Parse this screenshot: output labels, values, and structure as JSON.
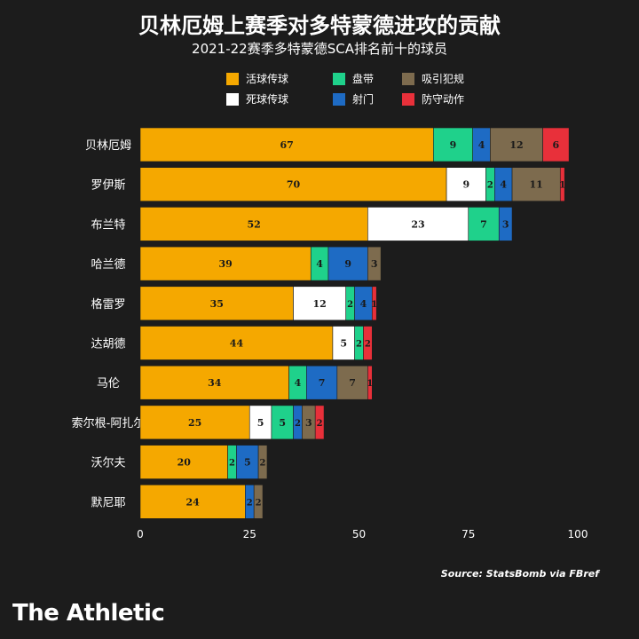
{
  "title": "贝林厄姆上赛季对多特蒙德进攻的贡献",
  "subtitle": "2021-22赛季多特蒙德SCA排名前十的球员",
  "source": "Source: StatsBomb via FBref",
  "brand": "The Athletic",
  "legend": [
    {
      "label": "活球传球",
      "color": "#f5a800"
    },
    {
      "label": "盘带",
      "color": "#1fd18b"
    },
    {
      "label": "吸引犯规",
      "color": "#7d6b4e"
    },
    {
      "label": "死球传球",
      "color": "#ffffff"
    },
    {
      "label": "射门",
      "color": "#1e6bc4"
    },
    {
      "label": "防守动作",
      "color": "#e8303a"
    }
  ],
  "chart_data": {
    "type": "bar",
    "orientation": "horizontal",
    "stacked": true,
    "categories": [
      "贝林厄姆",
      "罗伊斯",
      "布兰特",
      "哈兰德",
      "格雷罗",
      "达胡德",
      "马伦",
      "索尔根-阿扎尔",
      "沃尔夫",
      "默尼耶"
    ],
    "series": [
      {
        "name": "活球传球",
        "color": "#f5a800",
        "values": [
          67,
          70,
          52,
          39,
          35,
          44,
          34,
          25,
          20,
          24
        ]
      },
      {
        "name": "死球传球",
        "color": "#ffffff",
        "values": [
          0,
          9,
          23,
          0,
          12,
          5,
          0,
          5,
          0,
          0
        ]
      },
      {
        "name": "盘带",
        "color": "#1fd18b",
        "values": [
          9,
          2,
          7,
          4,
          2,
          2,
          4,
          5,
          2,
          0
        ]
      },
      {
        "name": "射门",
        "color": "#1e6bc4",
        "values": [
          4,
          4,
          3,
          9,
          4,
          0,
          7,
          2,
          5,
          2
        ]
      },
      {
        "name": "吸引犯规",
        "color": "#7d6b4e",
        "values": [
          12,
          11,
          0,
          3,
          0,
          0,
          7,
          3,
          2,
          2
        ]
      },
      {
        "name": "防守动作",
        "color": "#e8303a",
        "values": [
          6,
          1,
          0,
          0,
          1,
          2,
          1,
          2,
          0,
          0
        ]
      }
    ],
    "xlim": [
      0,
      100
    ],
    "xticks": [
      0,
      25,
      50,
      75,
      100
    ],
    "grid": false,
    "legend_position": "top"
  }
}
